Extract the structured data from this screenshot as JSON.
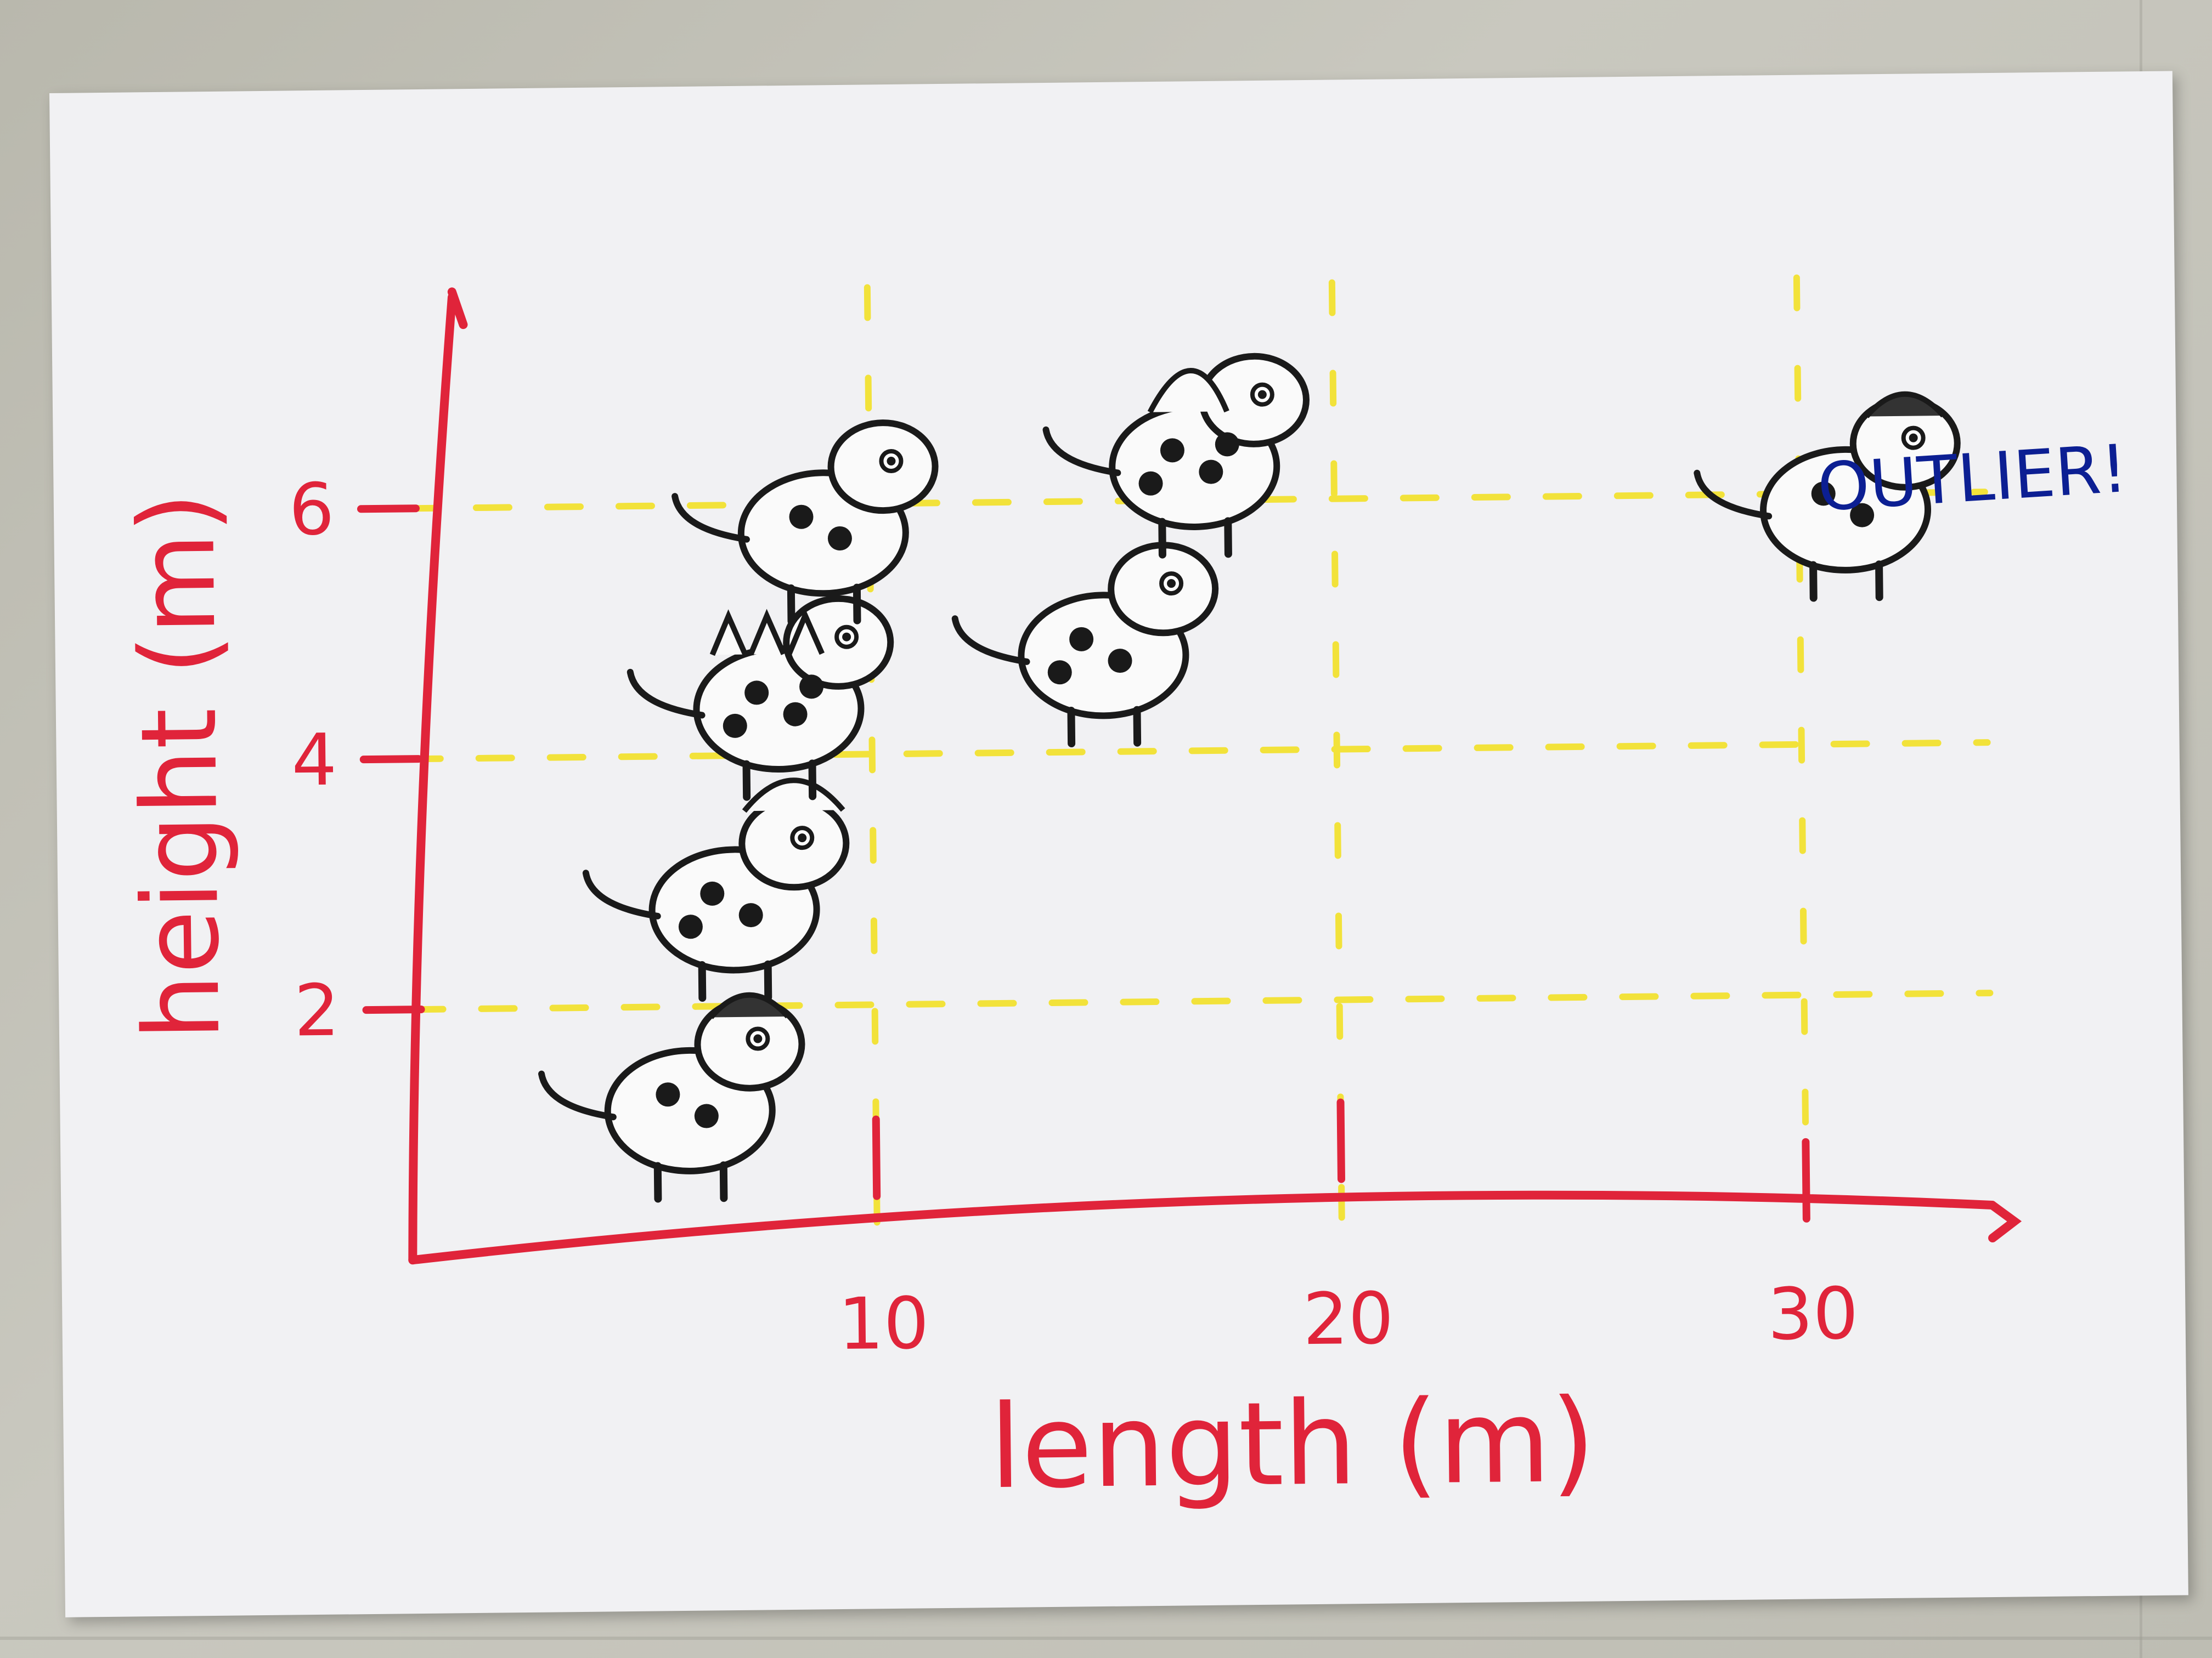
{
  "chart_data": {
    "type": "scatter",
    "title": "",
    "xlabel": "length (m)",
    "ylabel": "height (m)",
    "x_ticks": [
      10,
      20,
      30
    ],
    "y_ticks": [
      2,
      4,
      6
    ],
    "xlim": [
      0,
      34
    ],
    "ylim": [
      0,
      7.2
    ],
    "grid": true,
    "grid_color": "#f2e23a",
    "axis_color": "#e0243a",
    "marker": "dinosaur stamp",
    "points": [
      {
        "x": 6,
        "y": 1.3,
        "marker": "pachycephalosaurus-stamp"
      },
      {
        "x": 7,
        "y": 2.9,
        "marker": "triceratops-stamp"
      },
      {
        "x": 8,
        "y": 4.5,
        "marker": "stegosaurus-stamp"
      },
      {
        "x": 9,
        "y": 5.9,
        "marker": "parasaurolophus-stamp"
      },
      {
        "x": 15,
        "y": 4.9,
        "marker": "carnotaurus-stamp"
      },
      {
        "x": 17,
        "y": 6.4,
        "marker": "spinosaurus-stamp"
      },
      {
        "x": 31,
        "y": 6.0,
        "marker": "brachiosaurus-stamp"
      }
    ],
    "annotations": [
      {
        "text": "OUTLIER!",
        "color": "#0c1f93",
        "near_point": 6
      }
    ]
  }
}
